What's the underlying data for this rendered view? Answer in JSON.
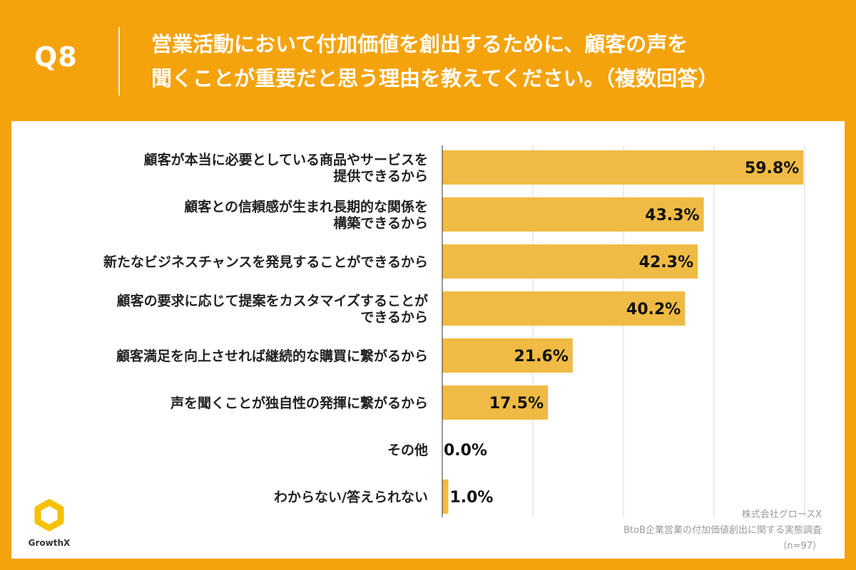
{
  "header": {
    "qnum": "Q8",
    "title_line1": "営業活動において付加価値を創出するために、顧客の声を",
    "title_line2": "聞くことが重要だと思う理由を教えてください。（複数回答）"
  },
  "chart_data": {
    "type": "bar",
    "orientation": "horizontal",
    "title": "",
    "categories": [
      [
        "顧客が本当に必要としている商品やサービスを",
        "提供できるから"
      ],
      [
        "顧客との信頼感が生まれ長期的な関係を",
        "構築できるから"
      ],
      [
        "新たなビジネスチャンスを発見することができるから"
      ],
      [
        "顧客の要求に応じて提案をカスタマイズすることが",
        "できるから"
      ],
      [
        "顧客満足を向上させれば継続的な購買に繋がるから"
      ],
      [
        "声を聞くことが独自性の発揮に繋がるから"
      ],
      [
        "その他"
      ],
      [
        "わからない/答えられない"
      ]
    ],
    "values": [
      59.8,
      43.3,
      42.3,
      40.2,
      21.6,
      17.5,
      0.0,
      1.0
    ],
    "value_labels": [
      "59.8%",
      "43.3%",
      "42.3%",
      "40.2%",
      "21.6%",
      "17.5%",
      "0.0%",
      "1.0%"
    ],
    "xlim": [
      0,
      60
    ],
    "gridlines": [
      0,
      15,
      30,
      45,
      60
    ],
    "grid": true,
    "bar_color": "#f0bb44",
    "grid_color": "#d9d9d9"
  },
  "footer": {
    "company": "株式会社グロースX",
    "survey": "BtoB企業営業の付加価値創出に関する実態調査",
    "n": "（n=97）",
    "logo_text": "GrowthX"
  },
  "colors": {
    "background": "#f5a30c",
    "panel": "#ffffff",
    "logo": "#f5c100"
  }
}
